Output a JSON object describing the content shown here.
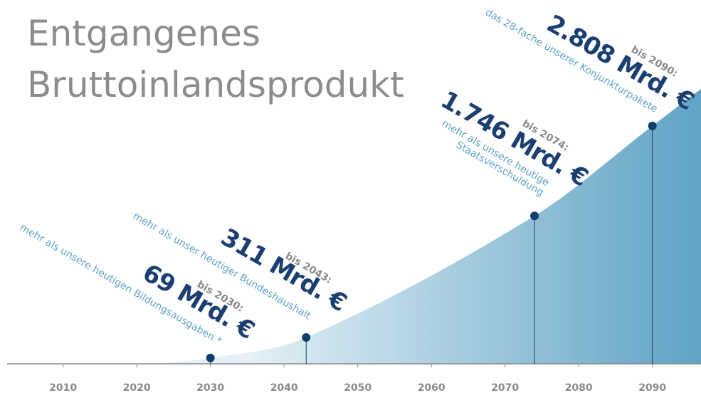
{
  "chart_data": {
    "type": "area",
    "title": [
      "Entgangenes",
      "Bruttoinlandsprodukt"
    ],
    "x": [
      2020,
      2030,
      2043,
      2074,
      2090,
      2096.6
    ],
    "values": [
      0,
      69,
      311,
      1746,
      2808,
      3245
    ],
    "value_labels": [
      null,
      "69 Mrd. €",
      "311 Mrd. €",
      "1.746 Mrd. €",
      "2.808 Mrd. €",
      null
    ],
    "annotations": [
      {
        "point": 1,
        "prefix": "bis 2030:",
        "note": [
          "mehr als unsere heutigen Bildungsausgaben *"
        ]
      },
      {
        "point": 2,
        "prefix": "bis 2043:",
        "note": [
          "mehr als unser heutiger Bundeshaushalt"
        ]
      },
      {
        "point": 3,
        "prefix": "bis 2074:",
        "note": [
          "mehr als unsere heutige",
          "Staatsverschuldung"
        ]
      },
      {
        "point": 4,
        "prefix": "bis 2090:",
        "note": [
          "das 28-fache unserer Konjunkturpakete"
        ]
      }
    ],
    "xlim": [
      2002.4,
      2096.6
    ],
    "ylim": [
      0,
      3000
    ],
    "xticks": [
      2010,
      2020,
      2030,
      2040,
      2050,
      2060,
      2070,
      2080,
      2090
    ],
    "colors": {
      "area_start": "#e4f0f5",
      "area_end": "#5fa3c5",
      "marker": "#0f3f6b"
    }
  }
}
